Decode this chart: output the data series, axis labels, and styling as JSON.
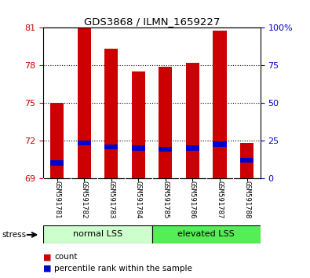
{
  "title": "GDS3868 / ILMN_1659227",
  "samples": [
    "GSM591781",
    "GSM591782",
    "GSM591783",
    "GSM591784",
    "GSM591785",
    "GSM591786",
    "GSM591787",
    "GSM591788"
  ],
  "count_values": [
    75.0,
    81.0,
    79.3,
    77.5,
    77.9,
    78.2,
    80.8,
    71.8
  ],
  "percentile_values": [
    70.2,
    71.8,
    71.5,
    71.4,
    71.3,
    71.4,
    71.7,
    70.4
  ],
  "ymin": 69,
  "ymax": 81,
  "yticks_left": [
    69,
    72,
    75,
    78,
    81
  ],
  "yticks_right": [
    0,
    25,
    50,
    75,
    100
  ],
  "groups": [
    {
      "label": "normal LSS",
      "start": 0,
      "end": 3,
      "color": "#ccffcc"
    },
    {
      "label": "elevated LSS",
      "start": 4,
      "end": 7,
      "color": "#55ee55"
    }
  ],
  "stress_label": "stress",
  "bar_color": "#cc0000",
  "percentile_color": "#0000cc",
  "bar_width": 0.5,
  "legend_count_label": "count",
  "legend_percentile_label": "percentile rank within the sample",
  "background_color": "#ffffff",
  "tick_label_color_left": "#cc0000",
  "tick_label_color_right": "#0000cc",
  "xticklabel_bg": "#cccccc"
}
